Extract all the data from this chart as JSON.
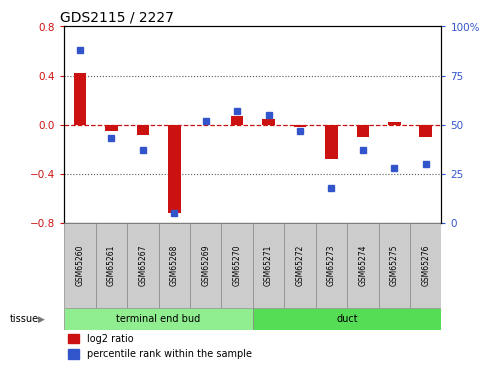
{
  "title": "GDS2115 / 2227",
  "samples": [
    "GSM65260",
    "GSM65261",
    "GSM65267",
    "GSM65268",
    "GSM65269",
    "GSM65270",
    "GSM65271",
    "GSM65272",
    "GSM65273",
    "GSM65274",
    "GSM65275",
    "GSM65276"
  ],
  "log2_ratio": [
    0.42,
    -0.05,
    -0.08,
    -0.72,
    0.0,
    0.07,
    0.05,
    -0.02,
    -0.28,
    -0.1,
    0.02,
    -0.1
  ],
  "percentile_rank": [
    88,
    43,
    37,
    5,
    52,
    57,
    55,
    47,
    18,
    37,
    28,
    30
  ],
  "groups": [
    {
      "label": "terminal end bud",
      "start": 0,
      "end": 5
    },
    {
      "label": "duct",
      "start": 6,
      "end": 11
    }
  ],
  "bar_color": "#CC1111",
  "dot_color": "#3355CC",
  "ylim_left": [
    -0.8,
    0.8
  ],
  "ylim_right": [
    0,
    100
  ],
  "yticks_left": [
    -0.8,
    -0.4,
    0.0,
    0.4,
    0.8
  ],
  "yticks_right": [
    0,
    25,
    50,
    75,
    100
  ],
  "ylabel_left_color": "#CC1111",
  "ylabel_right_color": "#3355CC",
  "hline_color": "#CC1111",
  "grid_color": "#555555",
  "bg_sample_label": "#CCCCCC",
  "tissue_green_light": "#90EE90",
  "tissue_green_dark": "#55DD55",
  "tissue_label": "tissue",
  "legend_log2": "log2 ratio",
  "legend_pct": "percentile rank within the sample",
  "bar_width": 0.4
}
